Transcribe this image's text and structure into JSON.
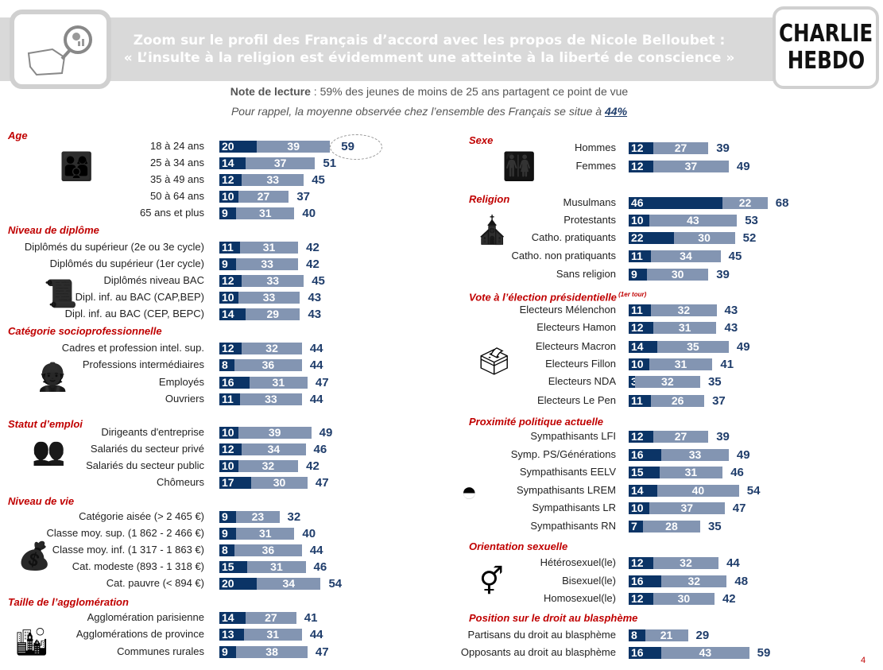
{
  "header": {
    "title_line1": "Zoom sur le profil des Français d’accord avec les propos de Nicole Belloubet :",
    "title_line2": "« L’insulte à la religion est évidemment une atteinte à la liberté de conscience »",
    "logo_line1": "CHARLIE",
    "logo_line2": "HEBDO",
    "note_label": "Note de lecture",
    "note_text": " : 59% des jeunes de moins de 25 ans partagent ce point de vue",
    "reminder_text": "Pour rappel, la moyenne observée chez l’ensemble des Français se situe à ",
    "reminder_value": "44%"
  },
  "page_number": "4",
  "colors": {
    "dark": "#0b3466",
    "light": "#8395b2",
    "section": "#c00000",
    "total": "#1f3d6b"
  },
  "chart_data": {
    "type": "bar",
    "orientation": "horizontal-stacked",
    "overall_average": 44,
    "series_names": [
      "dark segment",
      "light segment"
    ],
    "groups": [
      {
        "title": "Age",
        "column": "left",
        "icon": "family-generations-icon",
        "rows": [
          {
            "label": "18 à 24 ans",
            "a": 20,
            "b": 39,
            "total": 59,
            "highlight": true
          },
          {
            "label": "25 à 34 ans",
            "a": 14,
            "b": 37,
            "total": 51
          },
          {
            "label": "35 à 49 ans",
            "a": 12,
            "b": 33,
            "total": 45
          },
          {
            "label": "50 à 64 ans",
            "a": 10,
            "b": 27,
            "total": 37
          },
          {
            "label": "65 ans et plus",
            "a": 9,
            "b": 31,
            "total": 40
          }
        ]
      },
      {
        "title": "Niveau de diplôme",
        "column": "left",
        "icon": "diploma-icon",
        "rows": [
          {
            "label": "Diplômés du supérieur (2e ou 3e cycle)",
            "a": 11,
            "b": 31,
            "total": 42
          },
          {
            "label": "Diplômés du supérieur (1er cycle)",
            "a": 9,
            "b": 33,
            "total": 42
          },
          {
            "label": "Diplômés niveau BAC",
            "a": 12,
            "b": 33,
            "total": 45
          },
          {
            "label": "Dipl. inf. au BAC (CAP,BEP)",
            "a": 10,
            "b": 33,
            "total": 43
          },
          {
            "label": "Dipl. inf. au BAC (CEP, BEPC)",
            "a": 14,
            "b": 29,
            "total": 43
          }
        ]
      },
      {
        "title": "Catégorie socioprofessionnelle",
        "column": "left",
        "icon": "workers-icon",
        "rows": [
          {
            "label": "Cadres et profession intel. sup.",
            "a": 12,
            "b": 32,
            "total": 44
          },
          {
            "label": "Professions intermédiaires",
            "a": 8,
            "b": 36,
            "total": 44
          },
          {
            "label": "Employés",
            "a": 16,
            "b": 31,
            "total": 47
          },
          {
            "label": "Ouvriers",
            "a": 11,
            "b": 33,
            "total": 44
          }
        ]
      },
      {
        "title": "Statut d’emploi",
        "column": "left",
        "icon": "org-chart-icon",
        "rows": [
          {
            "label": "Dirigeants d'entreprise",
            "a": 10,
            "b": 39,
            "total": 49
          },
          {
            "label": "Salariés du secteur privé",
            "a": 12,
            "b": 34,
            "total": 46
          },
          {
            "label": "Salariés du secteur public",
            "a": 10,
            "b": 32,
            "total": 42
          },
          {
            "label": "Chômeurs",
            "a": 17,
            "b": 30,
            "total": 47
          }
        ]
      },
      {
        "title": "Niveau de vie",
        "column": "left",
        "icon": "money-bag-icon",
        "rows": [
          {
            "label": "Catégorie aisée (> 2 465 €)",
            "a": 9,
            "b": 23,
            "total": 32
          },
          {
            "label": "Classe moy. sup. (1 862 - 2 466 €)",
            "a": 9,
            "b": 31,
            "total": 40
          },
          {
            "label": "Classe moy. inf. (1 317 - 1 863 €)",
            "a": 8,
            "b": 36,
            "total": 44
          },
          {
            "label": "Cat. modeste (893 - 1 318 €)",
            "a": 15,
            "b": 31,
            "total": 46
          },
          {
            "label": "Cat. pauvre (< 894 €)",
            "a": 20,
            "b": 34,
            "total": 54
          }
        ]
      },
      {
        "title": "Taille de l’agglomération",
        "column": "left",
        "icon": "city-icon",
        "rows": [
          {
            "label": "Agglomération parisienne",
            "a": 14,
            "b": 27,
            "total": 41
          },
          {
            "label": "Agglomérations de province",
            "a": 13,
            "b": 31,
            "total": 44
          },
          {
            "label": "Communes rurales",
            "a": 9,
            "b": 38,
            "total": 47
          }
        ]
      },
      {
        "title": "Sexe",
        "column": "right",
        "icon": "man-woman-icon",
        "rows": [
          {
            "label": "Hommes",
            "a": 12,
            "b": 27,
            "total": 39
          },
          {
            "label": "Femmes",
            "a": 12,
            "b": 37,
            "total": 49
          }
        ]
      },
      {
        "title": "Religion",
        "column": "right",
        "icon": "religion-icon",
        "rows": [
          {
            "label": "Musulmans",
            "a": 46,
            "b": 22,
            "total": 68
          },
          {
            "label": "Protestants",
            "a": 10,
            "b": 43,
            "total": 53
          },
          {
            "label": "Catho. pratiquants",
            "a": 22,
            "b": 30,
            "total": 52
          },
          {
            "label": "Catho. non pratiquants",
            "a": 11,
            "b": 34,
            "total": 45
          },
          {
            "label": "Sans religion",
            "a": 9,
            "b": 30,
            "total": 39
          }
        ]
      },
      {
        "title": "Vote à l’élection présidentielle",
        "title_sup": "(1er tour)",
        "column": "right",
        "icon": "ballot-box-icon",
        "rows": [
          {
            "label": "Electeurs Mélenchon",
            "a": 11,
            "b": 32,
            "total": 43
          },
          {
            "label": "Electeurs Hamon",
            "a": 12,
            "b": 31,
            "total": 43
          },
          {
            "label": "Electeurs Macron",
            "a": 14,
            "b": 35,
            "total": 49
          },
          {
            "label": "Electeurs Fillon",
            "a": 10,
            "b": 31,
            "total": 41
          },
          {
            "label": "Electeurs NDA",
            "a": 3,
            "b": 32,
            "total": 35
          },
          {
            "label": "Electeurs Le Pen",
            "a": 11,
            "b": 26,
            "total": 37
          }
        ]
      },
      {
        "title": "Proximité politique actuelle",
        "column": "right",
        "icon": "parliament-hemicycle-icon",
        "rows": [
          {
            "label": "Sympathisants LFI",
            "a": 12,
            "b": 27,
            "total": 39
          },
          {
            "label": "Symp. PS/Générations",
            "a": 16,
            "b": 33,
            "total": 49
          },
          {
            "label": "Sympathisants EELV",
            "a": 15,
            "b": 31,
            "total": 46
          },
          {
            "label": "Sympathisants LREM",
            "a": 14,
            "b": 40,
            "total": 54
          },
          {
            "label": "Sympathisants LR",
            "a": 10,
            "b": 37,
            "total": 47
          },
          {
            "label": "Sympathisants RN",
            "a": 7,
            "b": 28,
            "total": 35
          }
        ]
      },
      {
        "title": "Orientation sexuelle",
        "column": "right",
        "icon": "gender-symbols-icon",
        "rows": [
          {
            "label": "Hétérosexuel(le)",
            "a": 12,
            "b": 32,
            "total": 44
          },
          {
            "label": "Bisexuel(le)",
            "a": 16,
            "b": 32,
            "total": 48
          },
          {
            "label": "Homosexuel(le)",
            "a": 12,
            "b": 30,
            "total": 42
          }
        ]
      },
      {
        "title": "Position sur le droit au blasphème",
        "column": "right",
        "icon": "",
        "rows": [
          {
            "label": "Partisans du droit au blasphème",
            "a": 8,
            "b": 21,
            "total": 29
          },
          {
            "label": "Opposants au droit au blasphème",
            "a": 16,
            "b": 43,
            "total": 59
          }
        ]
      }
    ]
  }
}
